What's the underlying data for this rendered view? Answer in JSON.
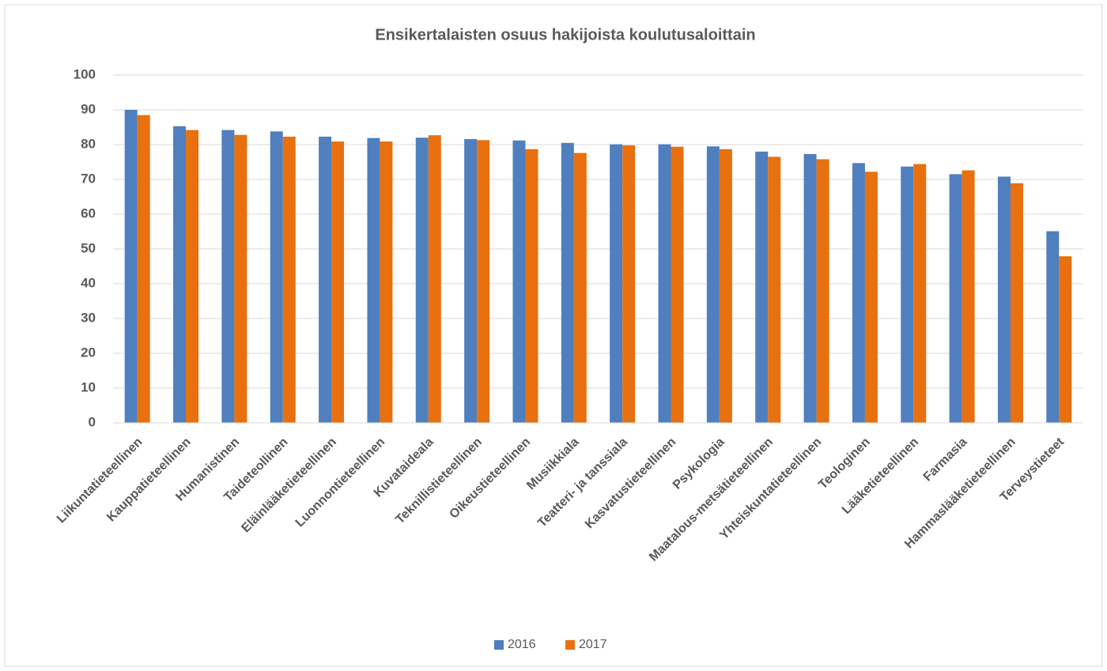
{
  "chart_data": {
    "type": "bar",
    "title": "Ensikertalaisten osuus hakijoista koulutusaloittain",
    "categories": [
      "Liikuntatieteellinen",
      "Kauppatieteellinen",
      "Humanistinen",
      "Taideteollinen",
      "Eläinlääketieteellinen",
      "Luonnontieteellinen",
      "Kuvataideala",
      "Teknillistieteellinen",
      "Oikeustieteellinen",
      "Musiikkiala",
      "Teatteri- ja tanssiala",
      "Kasvatustieteellinen",
      "Psykologia",
      "Maatalous-metsätieteellinen",
      "Yhteiskuntatieteellinen",
      "Teologinen",
      "Lääketieteellinen",
      "Farmasia",
      "Hammaslääketieteellinen",
      "Terveystieteet"
    ],
    "series": [
      {
        "name": "2016",
        "color": "#4f7fbf",
        "values": [
          90,
          85.3,
          84.2,
          83.8,
          82.3,
          81.9,
          82,
          81.6,
          81.2,
          80.5,
          80.1,
          80.1,
          79.5,
          78,
          77.3,
          74.7,
          73.7,
          71.5,
          70.8,
          55.1
        ]
      },
      {
        "name": "2017",
        "color": "#e8700f",
        "values": [
          88.5,
          84.2,
          82.8,
          82.3,
          80.9,
          80.9,
          82.7,
          81.3,
          78.7,
          77.6,
          79.8,
          79.4,
          78.7,
          76.5,
          75.8,
          72.2,
          74.4,
          72.6,
          68.9,
          47.9
        ]
      }
    ],
    "ylim": [
      0,
      100
    ],
    "yticks": [
      0,
      10,
      20,
      30,
      40,
      50,
      60,
      70,
      80,
      90,
      100
    ],
    "grid": true,
    "legend": "bottom"
  }
}
